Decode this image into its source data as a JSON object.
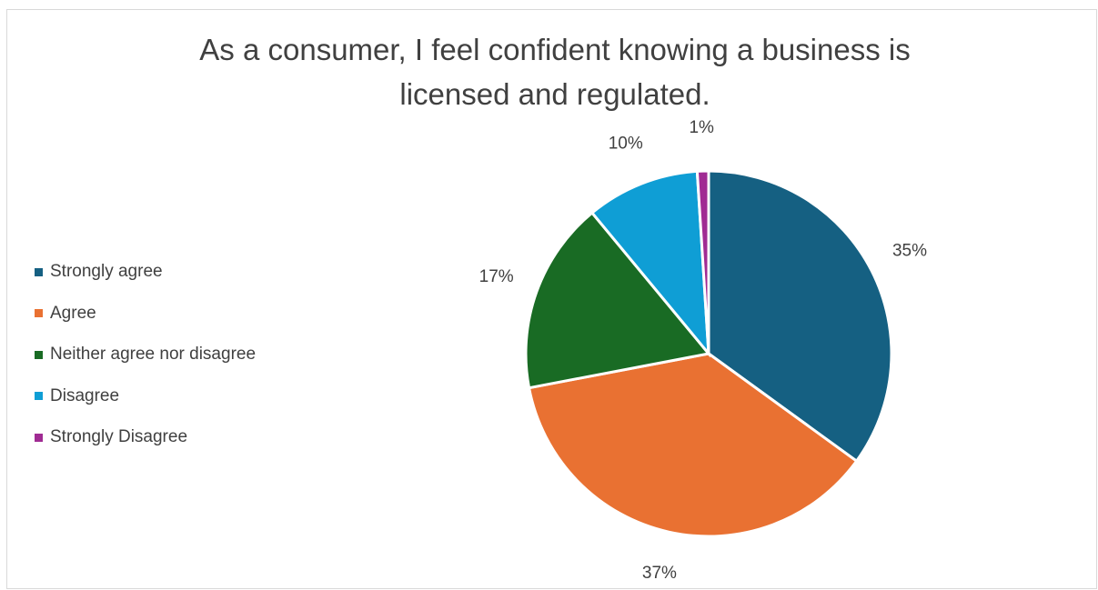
{
  "chart_data": {
    "type": "pie",
    "title_lines": [
      "As a consumer, I feel confident knowing a business is",
      "licensed and regulated."
    ],
    "categories": [
      "Strongly agree",
      "Agree",
      "Neither agree nor disagree",
      "Disagree",
      "Strongly Disagree"
    ],
    "values": [
      35,
      37,
      17,
      10,
      1
    ],
    "data_labels": [
      "35%",
      "37%",
      "17%",
      "10%",
      "1%"
    ],
    "colors": [
      "#156082",
      "#E97132",
      "#196B24",
      "#0F9ED5",
      "#A02B93"
    ],
    "legend_position": "left"
  }
}
